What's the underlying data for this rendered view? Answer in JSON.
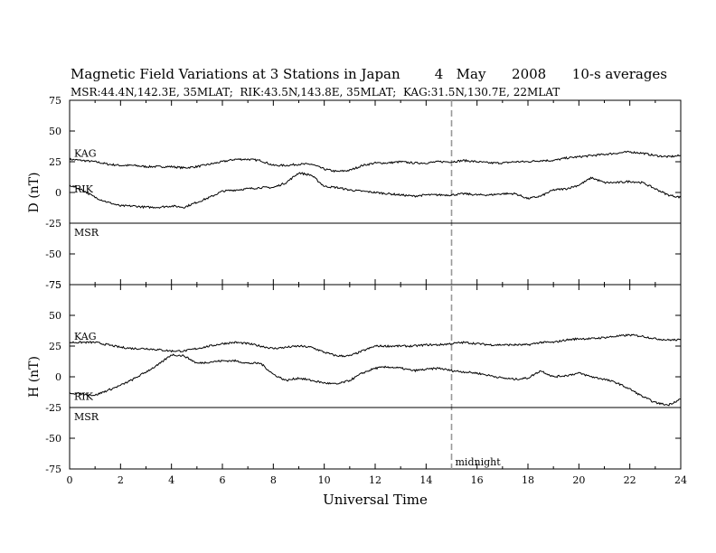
{
  "chart_data": [
    {
      "panel": "D",
      "type": "line",
      "title": "Magnetic Field Variations at 3 Stations in Japan        4   May      2008      10-s averages",
      "subtitle": "MSR:44.4N,142.3E, 35MLAT;  RIK:43.5N,143.8E, 35MLAT;  KAG:31.5N,130.7E, 22MLAT",
      "ylabel": "D (nT)",
      "xlabel": "",
      "xlim": [
        0,
        24
      ],
      "ylim": [
        -75,
        75
      ],
      "yticks": [
        75,
        50,
        25,
        0,
        -25,
        -50,
        -75
      ],
      "grid": false,
      "annotations": [
        {
          "text": "",
          "x": 15,
          "kind": "dashed-vertical-line"
        }
      ],
      "series": [
        {
          "name": "KAG",
          "x": [
            0,
            0.5,
            1,
            1.5,
            2,
            2.5,
            3,
            3.5,
            4,
            4.5,
            5,
            5.5,
            6,
            6.5,
            7,
            7.5,
            8,
            8.5,
            9,
            9.5,
            10,
            10.5,
            11,
            11.5,
            12,
            12.5,
            13,
            13.5,
            14,
            14.5,
            15,
            15.5,
            16,
            16.5,
            17,
            17.5,
            18,
            18.5,
            19,
            19.5,
            20,
            20.5,
            21,
            21.5,
            22,
            22.5,
            23,
            23.5,
            24
          ],
          "values": [
            27,
            26,
            25,
            23,
            22,
            22,
            21,
            21,
            21,
            20,
            21,
            23,
            25,
            27,
            27,
            26,
            22,
            22,
            23,
            23,
            19,
            17,
            18,
            22,
            24,
            24,
            25,
            24,
            24,
            25,
            25,
            26,
            25,
            24,
            24,
            25,
            25,
            26,
            26,
            28,
            29,
            30,
            31,
            32,
            33,
            32,
            30,
            29,
            30
          ]
        },
        {
          "name": "RIK",
          "x": [
            0,
            0.5,
            1,
            1.5,
            2,
            2.5,
            3,
            3.5,
            4,
            4.5,
            5,
            5.5,
            6,
            6.5,
            7,
            7.5,
            8,
            8.5,
            9,
            9.5,
            10,
            10.5,
            11,
            11.5,
            12,
            12.5,
            13,
            13.5,
            14,
            14.5,
            15,
            15.5,
            16,
            16.5,
            17,
            17.5,
            18,
            18.5,
            19,
            19.5,
            20,
            20.5,
            21,
            21.5,
            22,
            22.5,
            23,
            23.5,
            24
          ],
          "values": [
            6,
            2,
            -4,
            -8,
            -11,
            -11,
            -12,
            -12,
            -11,
            -12,
            -8,
            -4,
            1,
            2,
            3,
            4,
            4,
            8,
            16,
            14,
            5,
            4,
            2,
            1,
            0,
            -1,
            -2,
            -3,
            -2,
            -2,
            -2,
            -1,
            -2,
            -2,
            -1,
            -1,
            -5,
            -3,
            2,
            3,
            6,
            12,
            8,
            8,
            9,
            8,
            3,
            -2,
            -4
          ]
        },
        {
          "name": "MSR",
          "x": [
            0,
            24
          ],
          "values": [
            -25,
            -25
          ]
        }
      ]
    },
    {
      "panel": "H",
      "type": "line",
      "ylabel": "H (nT)",
      "xlabel": "Universal Time",
      "xlim": [
        0,
        24
      ],
      "ylim": [
        -75,
        75
      ],
      "xticks": [
        0,
        2,
        4,
        6,
        8,
        10,
        12,
        14,
        16,
        18,
        20,
        22,
        24
      ],
      "yticks": [
        75,
        50,
        25,
        0,
        -25,
        -50,
        -75
      ],
      "grid": false,
      "annotations": [
        {
          "text": "midnight",
          "x": 15,
          "kind": "dashed-vertical-line"
        }
      ],
      "series": [
        {
          "name": "KAG",
          "x": [
            0,
            0.5,
            1,
            1.5,
            2,
            2.5,
            3,
            3.5,
            4,
            4.5,
            5,
            5.5,
            6,
            6.5,
            7,
            7.5,
            8,
            8.5,
            9,
            9.5,
            10,
            10.5,
            11,
            11.5,
            12,
            12.5,
            13,
            13.5,
            14,
            14.5,
            15,
            15.5,
            16,
            16.5,
            17,
            17.5,
            18,
            18.5,
            19,
            19.5,
            20,
            20.5,
            21,
            21.5,
            22,
            22.5,
            23,
            23.5,
            24
          ],
          "values": [
            28,
            28,
            28,
            26,
            24,
            23,
            23,
            22,
            21,
            21,
            23,
            25,
            27,
            28,
            27,
            25,
            23,
            24,
            25,
            24,
            20,
            17,
            17,
            21,
            25,
            25,
            25,
            25,
            26,
            26,
            27,
            28,
            27,
            26,
            26,
            26,
            26,
            28,
            28,
            30,
            31,
            31,
            32,
            33,
            34,
            33,
            31,
            30,
            30
          ]
        },
        {
          "name": "RIK",
          "x": [
            0,
            0.5,
            1,
            1.5,
            2,
            2.5,
            3,
            3.5,
            4,
            4.5,
            5,
            5.5,
            6,
            6.5,
            7,
            7.5,
            8,
            8.5,
            9,
            9.5,
            10,
            10.5,
            11,
            11.5,
            12,
            12.5,
            13,
            13.5,
            14,
            14.5,
            15,
            15.5,
            16,
            16.5,
            17,
            17.5,
            18,
            18.5,
            19,
            19.5,
            20,
            20.5,
            21,
            21.5,
            22,
            22.5,
            23,
            23.5,
            24
          ],
          "values": [
            -13,
            -14,
            -15,
            -11,
            -7,
            -2,
            4,
            10,
            18,
            17,
            11,
            12,
            13,
            13,
            11,
            11,
            2,
            -3,
            -1,
            -3,
            -5,
            -6,
            -3,
            3,
            7,
            8,
            7,
            5,
            6,
            7,
            5,
            4,
            3,
            1,
            -1,
            -2,
            -1,
            5,
            0,
            1,
            3,
            0,
            -2,
            -5,
            -10,
            -16,
            -21,
            -23,
            -18
          ]
        },
        {
          "name": "MSR",
          "x": [
            0,
            24
          ],
          "values": [
            -25,
            -25
          ]
        }
      ]
    }
  ]
}
